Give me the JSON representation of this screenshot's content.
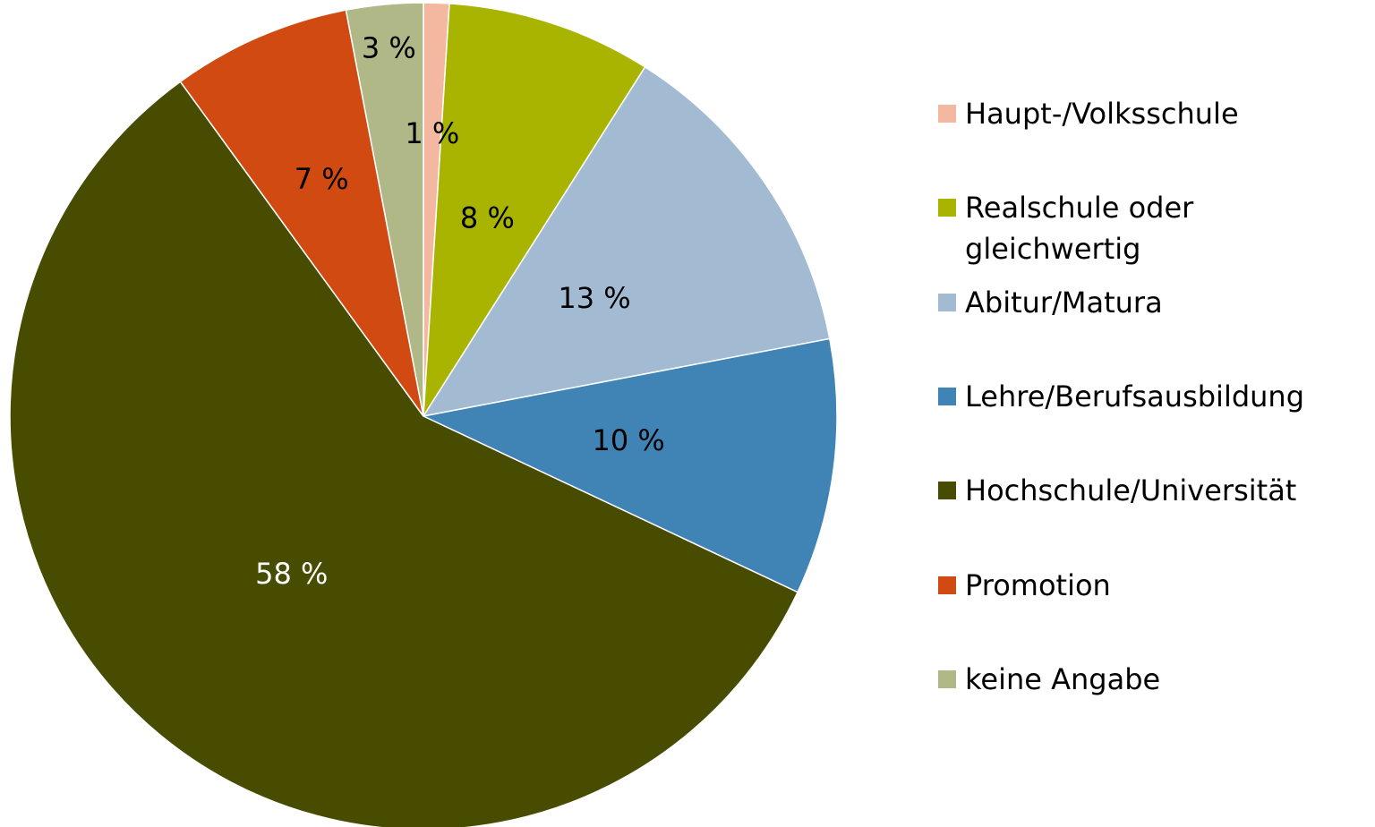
{
  "chart_data": {
    "type": "pie",
    "categories": [
      "Haupt-/Volksschule",
      "Realschule oder gleichwertig",
      "Abitur/Matura",
      "Lehre/Berufsausbildung",
      "Hochschule/Universität",
      "Promotion",
      "keine Angabe"
    ],
    "values": [
      1,
      8,
      13,
      10,
      58,
      7,
      3
    ],
    "value_labels": [
      "1 %",
      "8 %",
      "13 %",
      "10 %",
      "58 %",
      "7 %",
      "3 %"
    ],
    "colors": [
      "#f4b8a0",
      "#a8b400",
      "#a2bbd2",
      "#4084b5",
      "#474c00",
      "#d04a12",
      "#b0b888"
    ],
    "legend": "right"
  }
}
